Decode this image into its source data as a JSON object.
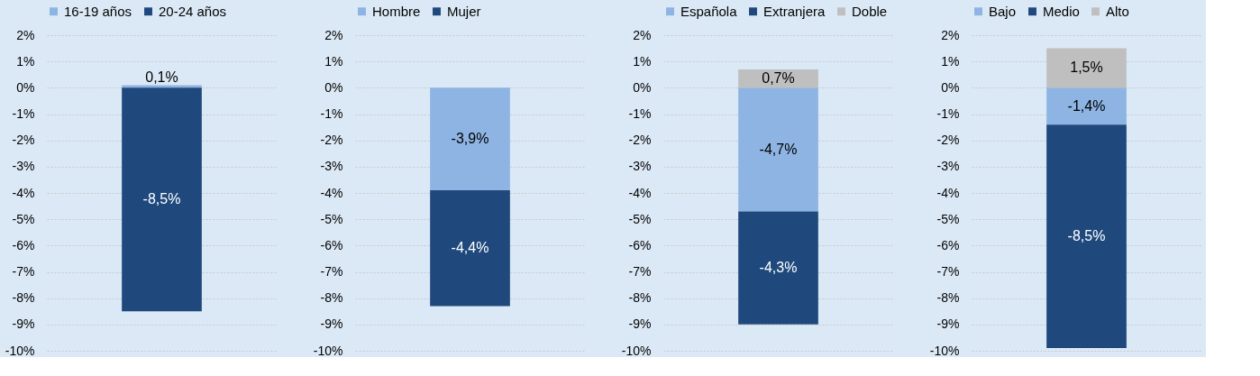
{
  "chart_data": [
    {
      "type": "bar",
      "stacked": true,
      "categories": [
        null
      ],
      "series": [
        {
          "name": "16-19 años",
          "color": "#8db4e2",
          "values": [
            0.1
          ],
          "value_labels": [
            "0,1%"
          ]
        },
        {
          "name": "20-24 años",
          "color": "#1f497d",
          "values": [
            -8.5
          ],
          "value_labels": [
            "-8,5%"
          ]
        }
      ],
      "ylim": [
        -10,
        2
      ],
      "yticks": [
        {
          "value": -10,
          "label": "-10%"
        },
        {
          "value": -9,
          "label": "-9%"
        },
        {
          "value": -8,
          "label": "-8%"
        },
        {
          "value": -7,
          "label": "-7%"
        },
        {
          "value": -6,
          "label": "-6%"
        },
        {
          "value": -5,
          "label": "-5%"
        },
        {
          "value": -4,
          "label": "-4%"
        },
        {
          "value": -3,
          "label": "-3%"
        },
        {
          "value": -2,
          "label": "-2%"
        },
        {
          "value": -1,
          "label": "-1%"
        },
        {
          "value": 0,
          "label": "0%"
        },
        {
          "value": 1,
          "label": "1%"
        },
        {
          "value": 2,
          "label": "2%"
        }
      ],
      "grid": "y",
      "legend": "top",
      "tick_labels": "y"
    },
    {
      "type": "bar",
      "stacked": true,
      "categories": [
        null
      ],
      "series": [
        {
          "name": "Hombre",
          "color": "#8db4e2",
          "values": [
            -3.9
          ],
          "value_labels": [
            "-3,9%"
          ]
        },
        {
          "name": "Mujer",
          "color": "#1f497d",
          "values": [
            -4.4
          ],
          "value_labels": [
            "-4,4%"
          ]
        }
      ],
      "ylim": [
        -10,
        2
      ],
      "yticks": [
        {
          "value": -10,
          "label": "-10%"
        },
        {
          "value": -9,
          "label": "-9%"
        },
        {
          "value": -8,
          "label": "-8%"
        },
        {
          "value": -7,
          "label": "-7%"
        },
        {
          "value": -6,
          "label": "-6%"
        },
        {
          "value": -5,
          "label": "-5%"
        },
        {
          "value": -4,
          "label": "-4%"
        },
        {
          "value": -3,
          "label": "-3%"
        },
        {
          "value": -2,
          "label": "-2%"
        },
        {
          "value": -1,
          "label": "-1%"
        },
        {
          "value": 0,
          "label": "0%"
        },
        {
          "value": 1,
          "label": "1%"
        },
        {
          "value": 2,
          "label": "2%"
        }
      ],
      "grid": "y",
      "legend": "top",
      "tick_labels": "y"
    },
    {
      "type": "bar",
      "stacked": true,
      "categories": [
        null
      ],
      "series": [
        {
          "name": "Española",
          "color": "#8db4e2",
          "values": [
            -4.7
          ],
          "value_labels": [
            "-4,7%"
          ]
        },
        {
          "name": "Extranjera",
          "color": "#1f497d",
          "values": [
            -4.3
          ],
          "value_labels": [
            "-4,3%"
          ]
        },
        {
          "name": "Doble",
          "color": "#bfbfbf",
          "values": [
            0.7
          ],
          "value_labels": [
            "0,7%"
          ]
        }
      ],
      "ylim": [
        -10,
        2
      ],
      "yticks": [
        {
          "value": -10,
          "label": "-10%"
        },
        {
          "value": -9,
          "label": "-9%"
        },
        {
          "value": -8,
          "label": "-8%"
        },
        {
          "value": -7,
          "label": "-7%"
        },
        {
          "value": -6,
          "label": "-6%"
        },
        {
          "value": -5,
          "label": "-5%"
        },
        {
          "value": -4,
          "label": "-4%"
        },
        {
          "value": -3,
          "label": "-3%"
        },
        {
          "value": -2,
          "label": "-2%"
        },
        {
          "value": -1,
          "label": "-1%"
        },
        {
          "value": 0,
          "label": "0%"
        },
        {
          "value": 1,
          "label": "1%"
        },
        {
          "value": 2,
          "label": "2%"
        }
      ],
      "grid": "y",
      "legend": "top",
      "tick_labels": "y"
    },
    {
      "type": "bar",
      "stacked": true,
      "categories": [
        null
      ],
      "series": [
        {
          "name": "Bajo",
          "color": "#8db4e2",
          "values": [
            -1.4
          ],
          "value_labels": [
            "-1,4%"
          ]
        },
        {
          "name": "Medio",
          "color": "#1f497d",
          "values": [
            -8.5
          ],
          "value_labels": [
            "-8,5%"
          ]
        },
        {
          "name": "Alto",
          "color": "#bfbfbf",
          "values": [
            1.5
          ],
          "value_labels": [
            "1,5%"
          ]
        }
      ],
      "ylim": [
        -10,
        2
      ],
      "yticks": [
        {
          "value": -10,
          "label": "-10%"
        },
        {
          "value": -9,
          "label": "-9%"
        },
        {
          "value": -8,
          "label": "-8%"
        },
        {
          "value": -7,
          "label": "-7%"
        },
        {
          "value": -6,
          "label": "-6%"
        },
        {
          "value": -5,
          "label": "-5%"
        },
        {
          "value": -4,
          "label": "-4%"
        },
        {
          "value": -3,
          "label": "-3%"
        },
        {
          "value": -2,
          "label": "-2%"
        },
        {
          "value": -1,
          "label": "-1%"
        },
        {
          "value": 0,
          "label": "0%"
        },
        {
          "value": 1,
          "label": "1%"
        },
        {
          "value": 2,
          "label": "2%"
        }
      ],
      "grid": "y",
      "legend": "top",
      "tick_labels": "y"
    }
  ]
}
